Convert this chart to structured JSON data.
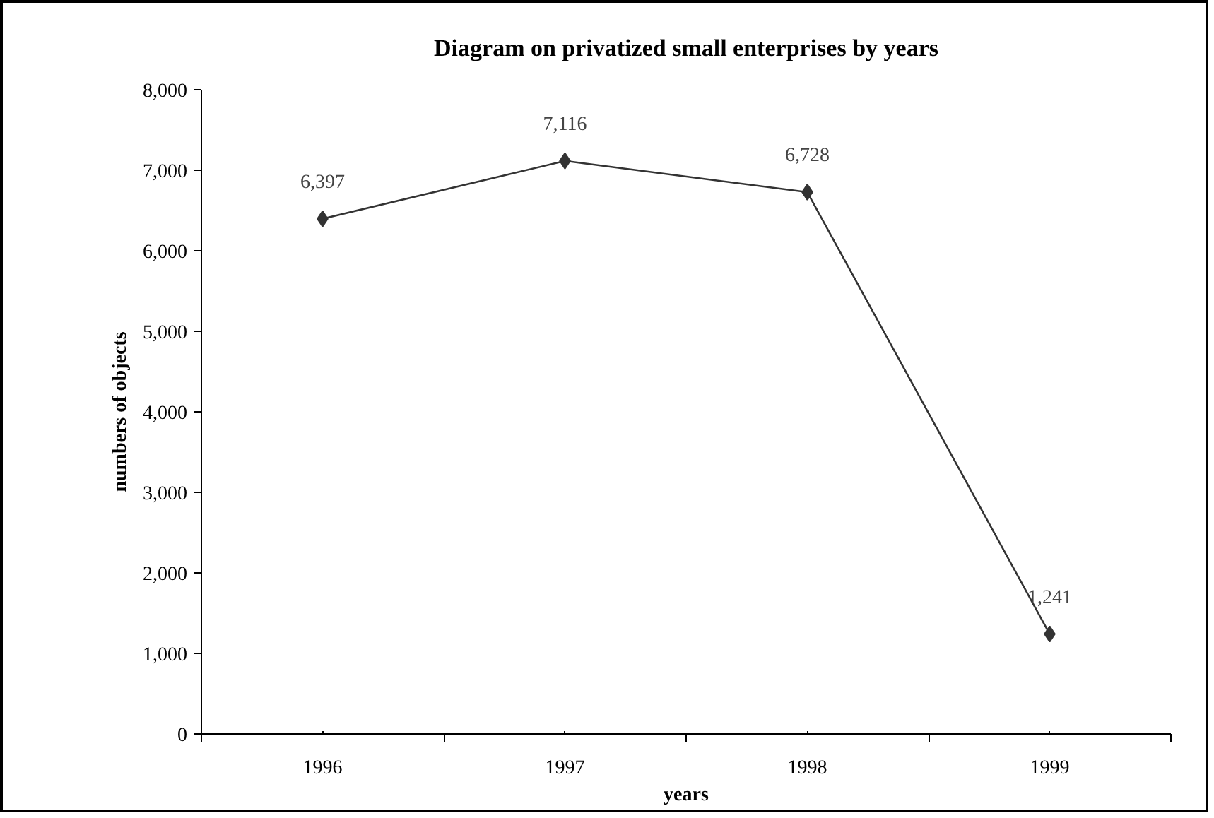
{
  "chart_data": {
    "type": "line",
    "title": "Diagram on privatized small enterprises by years",
    "xlabel": "years",
    "ylabel": "numbers of objects",
    "categories": [
      "1996",
      "1997",
      "1998",
      "1999"
    ],
    "series": [
      {
        "color": "#333333",
        "values": [
          6397,
          7116,
          6728,
          1241
        ],
        "value_labels": [
          "6,397",
          "7,116",
          "6,728",
          "1,241"
        ]
      }
    ],
    "ylim": [
      0,
      8000
    ],
    "yticks": [
      0,
      {
        "value": 1000,
        "label": "1,000"
      },
      {
        "value": 2000,
        "label": "2,000"
      },
      {
        "value": 3000,
        "label": "3,000"
      },
      {
        "value": 4000,
        "label": "4,000"
      },
      {
        "value": 5000,
        "label": "5,000"
      },
      {
        "value": 6000,
        "label": "6,000"
      },
      {
        "value": 7000,
        "label": "7,000"
      },
      {
        "value": 8000,
        "label": "8,000"
      }
    ],
    "marker": "diamond",
    "line_style": "solid",
    "grid": false
  }
}
